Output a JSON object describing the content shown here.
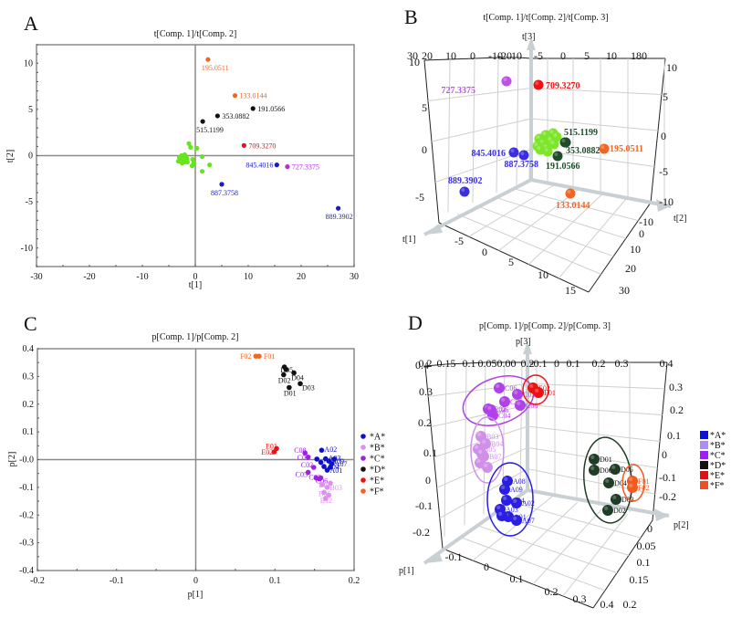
{
  "chart_data": [
    {
      "panel": "A",
      "type": "scatter",
      "title": "t[Comp. 1]/t[Comp. 2]",
      "xlabel": "t[1]",
      "ylabel": "t[2]",
      "xlim": [
        -30,
        30
      ],
      "ylim": [
        -12,
        12
      ],
      "xticks": [
        "-30",
        "-20",
        "-10",
        "0",
        "10",
        "20",
        "30"
      ],
      "xtick_values": [
        -30,
        -20,
        -10,
        0,
        10,
        20,
        30
      ],
      "yticks": [
        "-10",
        "-5",
        "0",
        "5",
        "10"
      ],
      "ytick_values": [
        -10,
        -5,
        0,
        5,
        10
      ],
      "labeled_points": [
        {
          "label": "195.0511",
          "x": 2.4,
          "y": 10.4,
          "color": "#f26522"
        },
        {
          "label": "133.0144",
          "x": 7.5,
          "y": 6.5,
          "color": "#f26522"
        },
        {
          "label": "191.0566",
          "x": 10.9,
          "y": 5.1,
          "color": "#111111"
        },
        {
          "label": "353.0882",
          "x": 4.2,
          "y": 4.3,
          "color": "#111111"
        },
        {
          "label": "515.1199",
          "x": 1.4,
          "y": 3.7,
          "color": "#111111"
        },
        {
          "label": "709.3270",
          "x": 9.2,
          "y": 1.1,
          "color": "#ee1111"
        },
        {
          "label": "845.4016",
          "x": 15.4,
          "y": -1.0,
          "color": "#1a1acc"
        },
        {
          "label": "727.3375",
          "x": 17.4,
          "y": -1.2,
          "color": "#b030e0"
        },
        {
          "label": "887.3758",
          "x": 5.0,
          "y": -3.1,
          "color": "#1a1acc"
        },
        {
          "label": "889.3902",
          "x": 27.0,
          "y": -5.7,
          "color": "#1a1acc"
        }
      ],
      "cluster_points": {
        "color": "#66e61a",
        "points": [
          [
            -3.2,
            -0.6
          ],
          [
            -2.8,
            -0.3
          ],
          [
            -2.5,
            -0.8
          ],
          [
            -2.2,
            -0.2
          ],
          [
            -2.0,
            0.1
          ],
          [
            -1.8,
            -0.5
          ],
          [
            -2.6,
            0.0
          ],
          [
            -2.3,
            -0.4
          ],
          [
            -1.5,
            -0.7
          ],
          [
            -1.9,
            -0.1
          ],
          [
            -1.2,
            1.3
          ],
          [
            -0.9,
            0.9
          ],
          [
            0.3,
            0.8
          ],
          [
            -0.5,
            -0.4
          ],
          [
            -0.6,
            -1.1
          ],
          [
            -0.3,
            -0.8
          ],
          [
            1.3,
            -0.1
          ],
          [
            2.7,
            -1.0
          ],
          [
            1.3,
            -1.7
          ],
          [
            -3.0,
            -0.2
          ],
          [
            -2.1,
            -0.7
          ],
          [
            -1.6,
            -0.3
          ]
        ]
      }
    },
    {
      "panel": "B",
      "type": "scatter3d",
      "title": "t[Comp. 1]/t[Comp. 2]/t[Comp. 3]",
      "axis_labels": {
        "x": "t[1]",
        "y": "t[2]",
        "z": "t[3]"
      },
      "x_ticks": [
        "-5",
        "0",
        "5",
        "10",
        "15"
      ],
      "y_ticks": [
        "-10",
        "0",
        "10",
        "20",
        "30"
      ],
      "z_ticks": [
        "-5",
        "0",
        "5",
        "10"
      ],
      "top_ticks": [
        "30",
        "20",
        "10",
        "0",
        "-10",
        "-20",
        "10",
        "-5",
        "0",
        "5",
        "10",
        "180"
      ],
      "right_ticks": [
        "-10",
        "-5",
        "0",
        "5",
        "10"
      ],
      "labeled_points": [
        {
          "label": "727.3375",
          "color": "#c050e8"
        },
        {
          "label": "709.3270",
          "color": "#ee1111"
        },
        {
          "label": "515.1199",
          "color": "#1f4d2a"
        },
        {
          "label": "353.0882",
          "color": "#1f4d2a"
        },
        {
          "label": "191.0566",
          "color": "#1f4d2a"
        },
        {
          "label": "195.0511",
          "color": "#f26522"
        },
        {
          "label": "845.4016",
          "color": "#3a2ee0"
        },
        {
          "label": "887.3758",
          "color": "#3a2ee0"
        },
        {
          "label": "889.3902",
          "color": "#3a2ee0"
        },
        {
          "label": "133.0144",
          "color": "#f26522"
        }
      ],
      "cluster_color": "#7ee62a"
    },
    {
      "panel": "C",
      "type": "scatter",
      "title": "p[Comp. 1]/p[Comp. 2]",
      "xlabel": "p[1]",
      "ylabel": "p[2]",
      "xlim": [
        -0.2,
        0.2
      ],
      "ylim": [
        -0.4,
        0.4
      ],
      "xticks": [
        "-0.2",
        "-0.1",
        "0",
        "0.1",
        "0.2"
      ],
      "xtick_values": [
        -0.2,
        -0.1,
        0,
        0.1,
        0.2
      ],
      "yticks": [
        "0.4",
        "0.3",
        "0.2",
        "0.1",
        "-0.0",
        "-0.1",
        "-0.2",
        "-0.3",
        "-0.4"
      ],
      "ytick_values": [
        0.4,
        0.3,
        0.2,
        0.1,
        0.0,
        -0.1,
        -0.2,
        -0.3,
        -0.4
      ],
      "legend": {
        "placement": "right",
        "entries": [
          {
            "label": "*A*",
            "color": "#1010c8"
          },
          {
            "label": "*B*",
            "color": "#e08ef0"
          },
          {
            "label": "*C*",
            "color": "#a020e0"
          },
          {
            "label": "*D*",
            "color": "#111111"
          },
          {
            "label": "*E*",
            "color": "#ee1111"
          },
          {
            "label": "*F*",
            "color": "#f26522"
          }
        ]
      },
      "series": [
        {
          "name": "*F*",
          "color": "#f26522",
          "points": [
            {
              "x": 0.076,
              "y": 0.373,
              "label": "F02"
            },
            {
              "x": 0.08,
              "y": 0.373,
              "label": "F01"
            }
          ]
        },
        {
          "name": "*D*",
          "color": "#111111",
          "points": [
            {
              "x": 0.112,
              "y": 0.334,
              "label": ""
            },
            {
              "x": 0.114,
              "y": 0.325,
              "label": "D05"
            },
            {
              "x": 0.111,
              "y": 0.306,
              "label": "D02"
            },
            {
              "x": 0.124,
              "y": 0.313,
              "label": "D04"
            },
            {
              "x": 0.118,
              "y": 0.26,
              "label": "D01"
            },
            {
              "x": 0.132,
              "y": 0.274,
              "label": "D03"
            }
          ]
        },
        {
          "name": "*E*",
          "color": "#ee1111",
          "points": [
            {
              "x": 0.102,
              "y": 0.04,
              "label": "E01"
            },
            {
              "x": 0.099,
              "y": 0.028,
              "label": "E02"
            }
          ]
        },
        {
          "name": "*C*",
          "color": "#a020e0",
          "points": [
            {
              "x": 0.138,
              "y": 0.024,
              "label": "C08"
            },
            {
              "x": 0.142,
              "y": 0.009,
              "label": "C01"
            },
            {
              "x": 0.149,
              "y": -0.028,
              "label": "C02"
            },
            {
              "x": 0.142,
              "y": -0.046,
              "label": "C05"
            },
            {
              "x": 0.152,
              "y": -0.066,
              "label": "C03"
            },
            {
              "x": 0.156,
              "y": -0.069,
              "label": "C06"
            },
            {
              "x": 0.158,
              "y": -0.066,
              "label": ""
            }
          ]
        },
        {
          "name": "*A*",
          "color": "#1010c8",
          "points": [
            {
              "x": 0.159,
              "y": 0.034,
              "label": "A02"
            },
            {
              "x": 0.153,
              "y": 0.002,
              "label": ""
            },
            {
              "x": 0.158,
              "y": -0.01,
              "label": "A06"
            },
            {
              "x": 0.164,
              "y": 0.003,
              "label": "A03"
            },
            {
              "x": 0.168,
              "y": -0.005,
              "label": "A09"
            },
            {
              "x": 0.172,
              "y": -0.015,
              "label": "A07"
            },
            {
              "x": 0.162,
              "y": -0.025,
              "label": "A04"
            },
            {
              "x": 0.166,
              "y": -0.038,
              "label": "A01"
            },
            {
              "x": 0.17,
              "y": -0.028,
              "label": ""
            },
            {
              "x": 0.175,
              "y": 0.002,
              "label": ""
            }
          ]
        },
        {
          "name": "*B*",
          "color": "#e08ef0",
          "points": [
            {
              "x": 0.16,
              "y": -0.09,
              "label": "B01"
            },
            {
              "x": 0.166,
              "y": -0.1,
              "label": "B03"
            },
            {
              "x": 0.162,
              "y": -0.118,
              "label": "B06"
            },
            {
              "x": 0.168,
              "y": -0.128,
              "label": ""
            },
            {
              "x": 0.164,
              "y": -0.14,
              "label": "B12"
            },
            {
              "x": 0.17,
              "y": -0.085,
              "label": ""
            }
          ]
        }
      ]
    },
    {
      "panel": "D",
      "type": "scatter3d",
      "title": "p[Comp. 1]/p[Comp. 2]/p[Comp. 3]",
      "axis_labels": {
        "x": "p[1]",
        "y": "p[2]",
        "z": "p[3]"
      },
      "x_ticks": [
        "-0.1",
        "0",
        "0.1",
        "0.2",
        "0.3",
        "0.4"
      ],
      "y_ticks": [
        "0",
        "0.05",
        "0.1",
        "0.15",
        "0.2"
      ],
      "z_ticks": [
        "0.4",
        "0.3",
        "0.2",
        "0.1",
        "0",
        "-0.1",
        "-0.2"
      ],
      "top_ticks": [
        "0.2",
        "0.15",
        "0.1",
        "0.05",
        "0.00",
        "0.2",
        "-0.1",
        "0",
        "0.1",
        "0.2",
        "0.3",
        "0.4"
      ],
      "right_ticks": [
        "0.3",
        "0.2",
        "0.1",
        "0",
        "-0.1",
        "-0.2"
      ],
      "legend": {
        "placement": "right",
        "entries": [
          {
            "label": "*A*",
            "color": "#1010d0"
          },
          {
            "label": "*B*",
            "color": "#b08ef0"
          },
          {
            "label": "*C*",
            "color": "#a020f0"
          },
          {
            "label": "*D*",
            "color": "#111111"
          },
          {
            "label": "*E*",
            "color": "#dd1111"
          },
          {
            "label": "*F*",
            "color": "#f24e22"
          }
        ]
      },
      "groups": [
        {
          "name": "*C*",
          "color": "#b040e8",
          "labels": [
            "C06",
            "C01",
            "C05",
            "C08",
            "C02",
            "C04",
            "C06"
          ]
        },
        {
          "name": "*E*",
          "color": "#ee1111",
          "labels": [
            "E02",
            "E01"
          ]
        },
        {
          "name": "*B*",
          "color": "#d090e8",
          "labels": [
            "B03",
            "B04",
            "B05",
            "B07"
          ]
        },
        {
          "name": "*A*",
          "color": "#2a1ee0",
          "labels": [
            "A08",
            "A09",
            "A04",
            "A02",
            "A03",
            "A01",
            "A07"
          ]
        },
        {
          "name": "*D*",
          "color": "#1f3d26",
          "labels": [
            "D01",
            "D06",
            "D05",
            "D04",
            "D03",
            "D02"
          ]
        },
        {
          "name": "*F*",
          "color": "#f25a1e",
          "labels": [
            "F01",
            "F02"
          ]
        }
      ]
    }
  ],
  "panels": {
    "A": {
      "letter": "A"
    },
    "B": {
      "letter": "B"
    },
    "C": {
      "letter": "C"
    },
    "D": {
      "letter": "D"
    }
  }
}
